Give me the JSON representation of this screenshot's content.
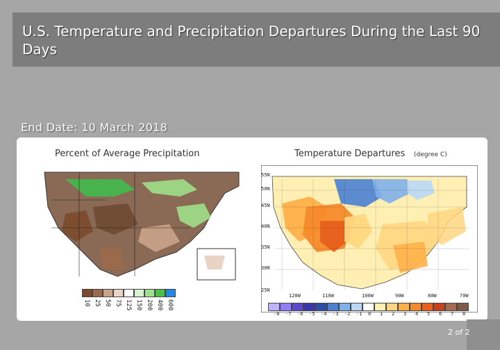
{
  "slide": {
    "title": "U.S. Temperature and Precipitation Departures During the Last 90 Days",
    "end_date": "End Date:  10 March 2018",
    "page": "2 of 2"
  },
  "precip_panel": {
    "title": "Percent of Average Precipitation",
    "legend": {
      "ticks": [
        "10",
        "25",
        "50",
        "75",
        "125",
        "150",
        "200",
        "400",
        "600"
      ],
      "colors": [
        "#7a4a2a",
        "#9c6a4c",
        "#c9a38a",
        "#e8d3c4",
        "#ffffff",
        "#d8f3cf",
        "#9fe08a",
        "#4cbf4c",
        "#1e88e5"
      ]
    }
  },
  "temp_panel": {
    "title": "Temperature Departures",
    "unit": "(degree C)",
    "lat_labels": [
      "55N",
      "50N",
      "45N",
      "40N",
      "35N",
      "30N",
      "25N"
    ],
    "lon_labels": [
      "120W",
      "110W",
      "100W",
      "90W",
      "80W",
      "70W"
    ],
    "legend": {
      "ticks": [
        "-8",
        "-7",
        "-6",
        "-5",
        "-4",
        "-3",
        "-2",
        "-1",
        "0",
        "1",
        "2",
        "3",
        "4",
        "5",
        "6",
        "7",
        "8"
      ],
      "colors": [
        "#bdb2ff",
        "#8f7fff",
        "#5a4ad1",
        "#3a35a8",
        "#2a4ea8",
        "#4a7fd1",
        "#7fb0ea",
        "#b9d7f5",
        "#ffffff",
        "#ffefb3",
        "#ffd680",
        "#ffb04a",
        "#f58a2a",
        "#e8601c",
        "#c9401a",
        "#a66a50",
        "#7f5a48"
      ]
    }
  }
}
